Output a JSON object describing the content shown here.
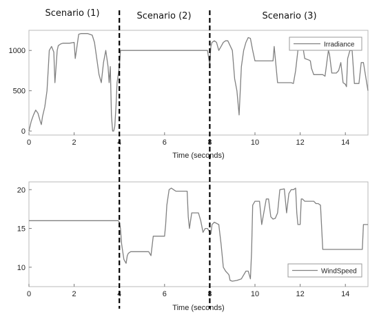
{
  "scenarios": [
    "Scenario (1)",
    "Scenario (2)",
    "Scenario (3)"
  ],
  "scenario_boundaries_s": [
    4,
    8
  ],
  "chart_data": [
    {
      "type": "line",
      "xlabel": "Time (seconds)",
      "ylabel": "",
      "xlim": [
        0,
        15
      ],
      "ylim": [
        -50,
        1250
      ],
      "xticks": [
        0,
        2,
        4,
        6,
        8,
        10,
        12,
        14
      ],
      "yticks": [
        0,
        500,
        1000
      ],
      "grid": false,
      "legend": "top-right",
      "series": [
        {
          "name": "Irradiance",
          "color": "#808080",
          "x": [
            0,
            0.1,
            0.2,
            0.3,
            0.4,
            0.5,
            0.55,
            0.6,
            0.7,
            0.8,
            0.85,
            0.9,
            1.0,
            1.1,
            1.15,
            1.2,
            1.25,
            1.3,
            1.4,
            1.5,
            1.6,
            1.8,
            2.0,
            2.05,
            2.1,
            2.2,
            2.3,
            2.4,
            2.6,
            2.8,
            2.9,
            3.0,
            3.1,
            3.2,
            3.3,
            3.4,
            3.5,
            3.55,
            3.6,
            3.65,
            3.7,
            3.75,
            3.8,
            3.85,
            3.9,
            4.0,
            4.05,
            4.1,
            5.0,
            6.0,
            7.0,
            7.9,
            8.0,
            8.05,
            8.1,
            8.2,
            8.3,
            8.4,
            8.5,
            8.6,
            8.7,
            8.8,
            9.0,
            9.1,
            9.2,
            9.3,
            9.4,
            9.5,
            9.6,
            9.7,
            9.8,
            9.9,
            10.0,
            10.1,
            10.2,
            10.8,
            10.85,
            11.0,
            11.5,
            11.6,
            11.7,
            11.8,
            11.9,
            12.0,
            12.1,
            12.2,
            12.4,
            12.45,
            12.5,
            12.6,
            12.8,
            13.0,
            13.1,
            13.2,
            13.25,
            13.3,
            13.4,
            13.6,
            13.7,
            13.8,
            13.9,
            14.0,
            14.05,
            14.1,
            14.2,
            14.3,
            14.4,
            14.6,
            14.7,
            14.8,
            15.0
          ],
          "values": [
            0,
            120,
            200,
            260,
            220,
            120,
            80,
            180,
            300,
            500,
            750,
            1000,
            1050,
            980,
            600,
            800,
            1000,
            1060,
            1080,
            1090,
            1090,
            1090,
            1100,
            900,
            1000,
            1200,
            1210,
            1210,
            1210,
            1190,
            1100,
            900,
            700,
            600,
            850,
            1000,
            800,
            600,
            800,
            200,
            0,
            0,
            60,
            300,
            600,
            800,
            1000,
            1000,
            1000,
            1000,
            1000,
            1000,
            820,
            1050,
            1100,
            1120,
            1100,
            1000,
            1050,
            1100,
            1120,
            1120,
            1000,
            650,
            500,
            200,
            800,
            1000,
            1100,
            1160,
            1150,
            1000,
            870,
            870,
            870,
            870,
            1050,
            600,
            600,
            600,
            590,
            750,
            1000,
            1100,
            1080,
            900,
            880,
            870,
            780,
            700,
            700,
            700,
            680,
            900,
            1000,
            950,
            720,
            720,
            750,
            850,
            600,
            580,
            550,
            900,
            1000,
            1000,
            590,
            590,
            850,
            850,
            500
          ]
        }
      ]
    },
    {
      "type": "line",
      "xlabel": "Time (seconds)",
      "ylabel": "",
      "xlim": [
        0,
        15
      ],
      "ylim": [
        7.5,
        21
      ],
      "xticks": [
        0,
        2,
        4,
        6,
        8,
        10,
        12,
        14
      ],
      "yticks": [
        10,
        15,
        20
      ],
      "grid": false,
      "legend": "bottom-right",
      "series": [
        {
          "name": "WindSpeed",
          "color": "#808080",
          "x": [
            0,
            3.95,
            4.0,
            4.05,
            4.1,
            4.2,
            4.3,
            4.35,
            4.4,
            4.5,
            4.6,
            5.3,
            5.4,
            5.5,
            6.0,
            6.05,
            6.1,
            6.2,
            6.3,
            6.4,
            6.5,
            6.6,
            6.8,
            7.0,
            7.05,
            7.1,
            7.2,
            7.5,
            7.6,
            7.7,
            7.8,
            7.9,
            8.0,
            8.05,
            8.1,
            8.2,
            8.4,
            8.5,
            8.6,
            8.7,
            8.8,
            8.85,
            8.9,
            9.0,
            9.2,
            9.4,
            9.6,
            9.7,
            9.8,
            9.85,
            9.9,
            10.0,
            10.2,
            10.3,
            10.5,
            10.6,
            10.7,
            10.8,
            10.9,
            11.0,
            11.1,
            11.3,
            11.4,
            11.5,
            11.6,
            11.7,
            11.8,
            11.85,
            11.9,
            12.0,
            12.05,
            12.1,
            12.2,
            12.6,
            12.7,
            12.8,
            12.9,
            13.0,
            14.7,
            14.75,
            14.8,
            15.0
          ],
          "values": [
            16,
            16,
            15.8,
            15,
            13,
            11,
            10.5,
            11.5,
            11.8,
            12,
            12,
            12,
            11.5,
            14,
            14,
            15.5,
            18,
            20,
            20.2,
            20,
            19.8,
            19.8,
            19.8,
            19.8,
            16.5,
            15,
            17,
            17,
            16,
            14.5,
            15,
            15,
            14.5,
            14.3,
            15.5,
            15.8,
            15.5,
            13,
            10,
            9.5,
            9.2,
            9,
            8.3,
            8.2,
            8.3,
            8.5,
            9.5,
            9.5,
            8.5,
            12,
            18,
            18.5,
            18.5,
            15.5,
            18.8,
            18.8,
            16.5,
            16.2,
            16.3,
            17,
            20,
            20.1,
            17,
            19.5,
            20,
            20,
            20.2,
            17,
            15.5,
            15.5,
            18.8,
            18.8,
            18.5,
            18.5,
            18.2,
            18.2,
            18,
            12.3,
            12.3,
            12.3,
            15.5,
            15.5
          ]
        }
      ]
    }
  ]
}
